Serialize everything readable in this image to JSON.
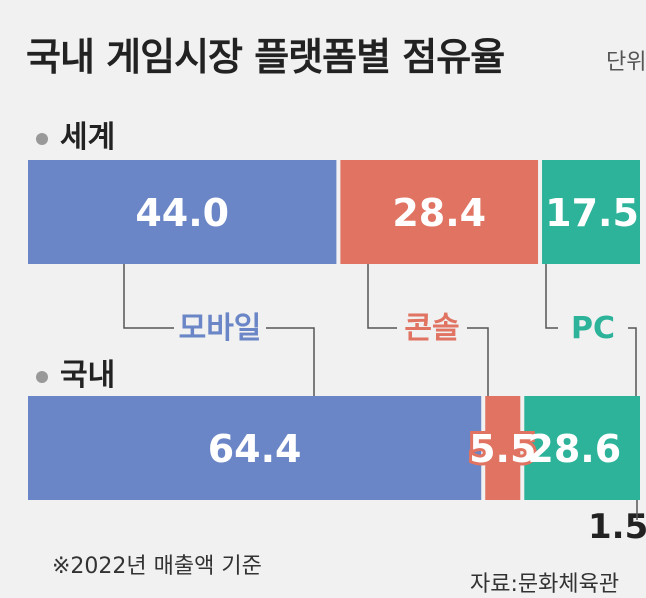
{
  "title": "국내 게임시장 플랫폼별 점유율",
  "unit_label": "단위",
  "footnote": "※2022년 매출액 기준",
  "source": "자료:문화체육관",
  "colors": {
    "mobile": "#6b86c7",
    "console": "#e07361",
    "pc": "#2cb39a",
    "other": "#bdbdbd"
  },
  "chart_data": {
    "type": "bar",
    "orientation": "horizontal-stacked",
    "title": "국내 게임시장 플랫폼별 점유율",
    "categories": [
      "세계",
      "국내"
    ],
    "series": [
      {
        "name": "모바일",
        "values": [
          44.0,
          64.4
        ]
      },
      {
        "name": "콘솔",
        "values": [
          28.4,
          5.5
        ]
      },
      {
        "name": "PC",
        "values": [
          17.5,
          28.6
        ]
      }
    ],
    "value_labels": [
      [
        "44.0",
        "28.4",
        "17.5"
      ],
      [
        "64.4",
        "5.5",
        "28.6"
      ]
    ],
    "extra_label": "1.5",
    "xlim": [
      0,
      100
    ]
  }
}
